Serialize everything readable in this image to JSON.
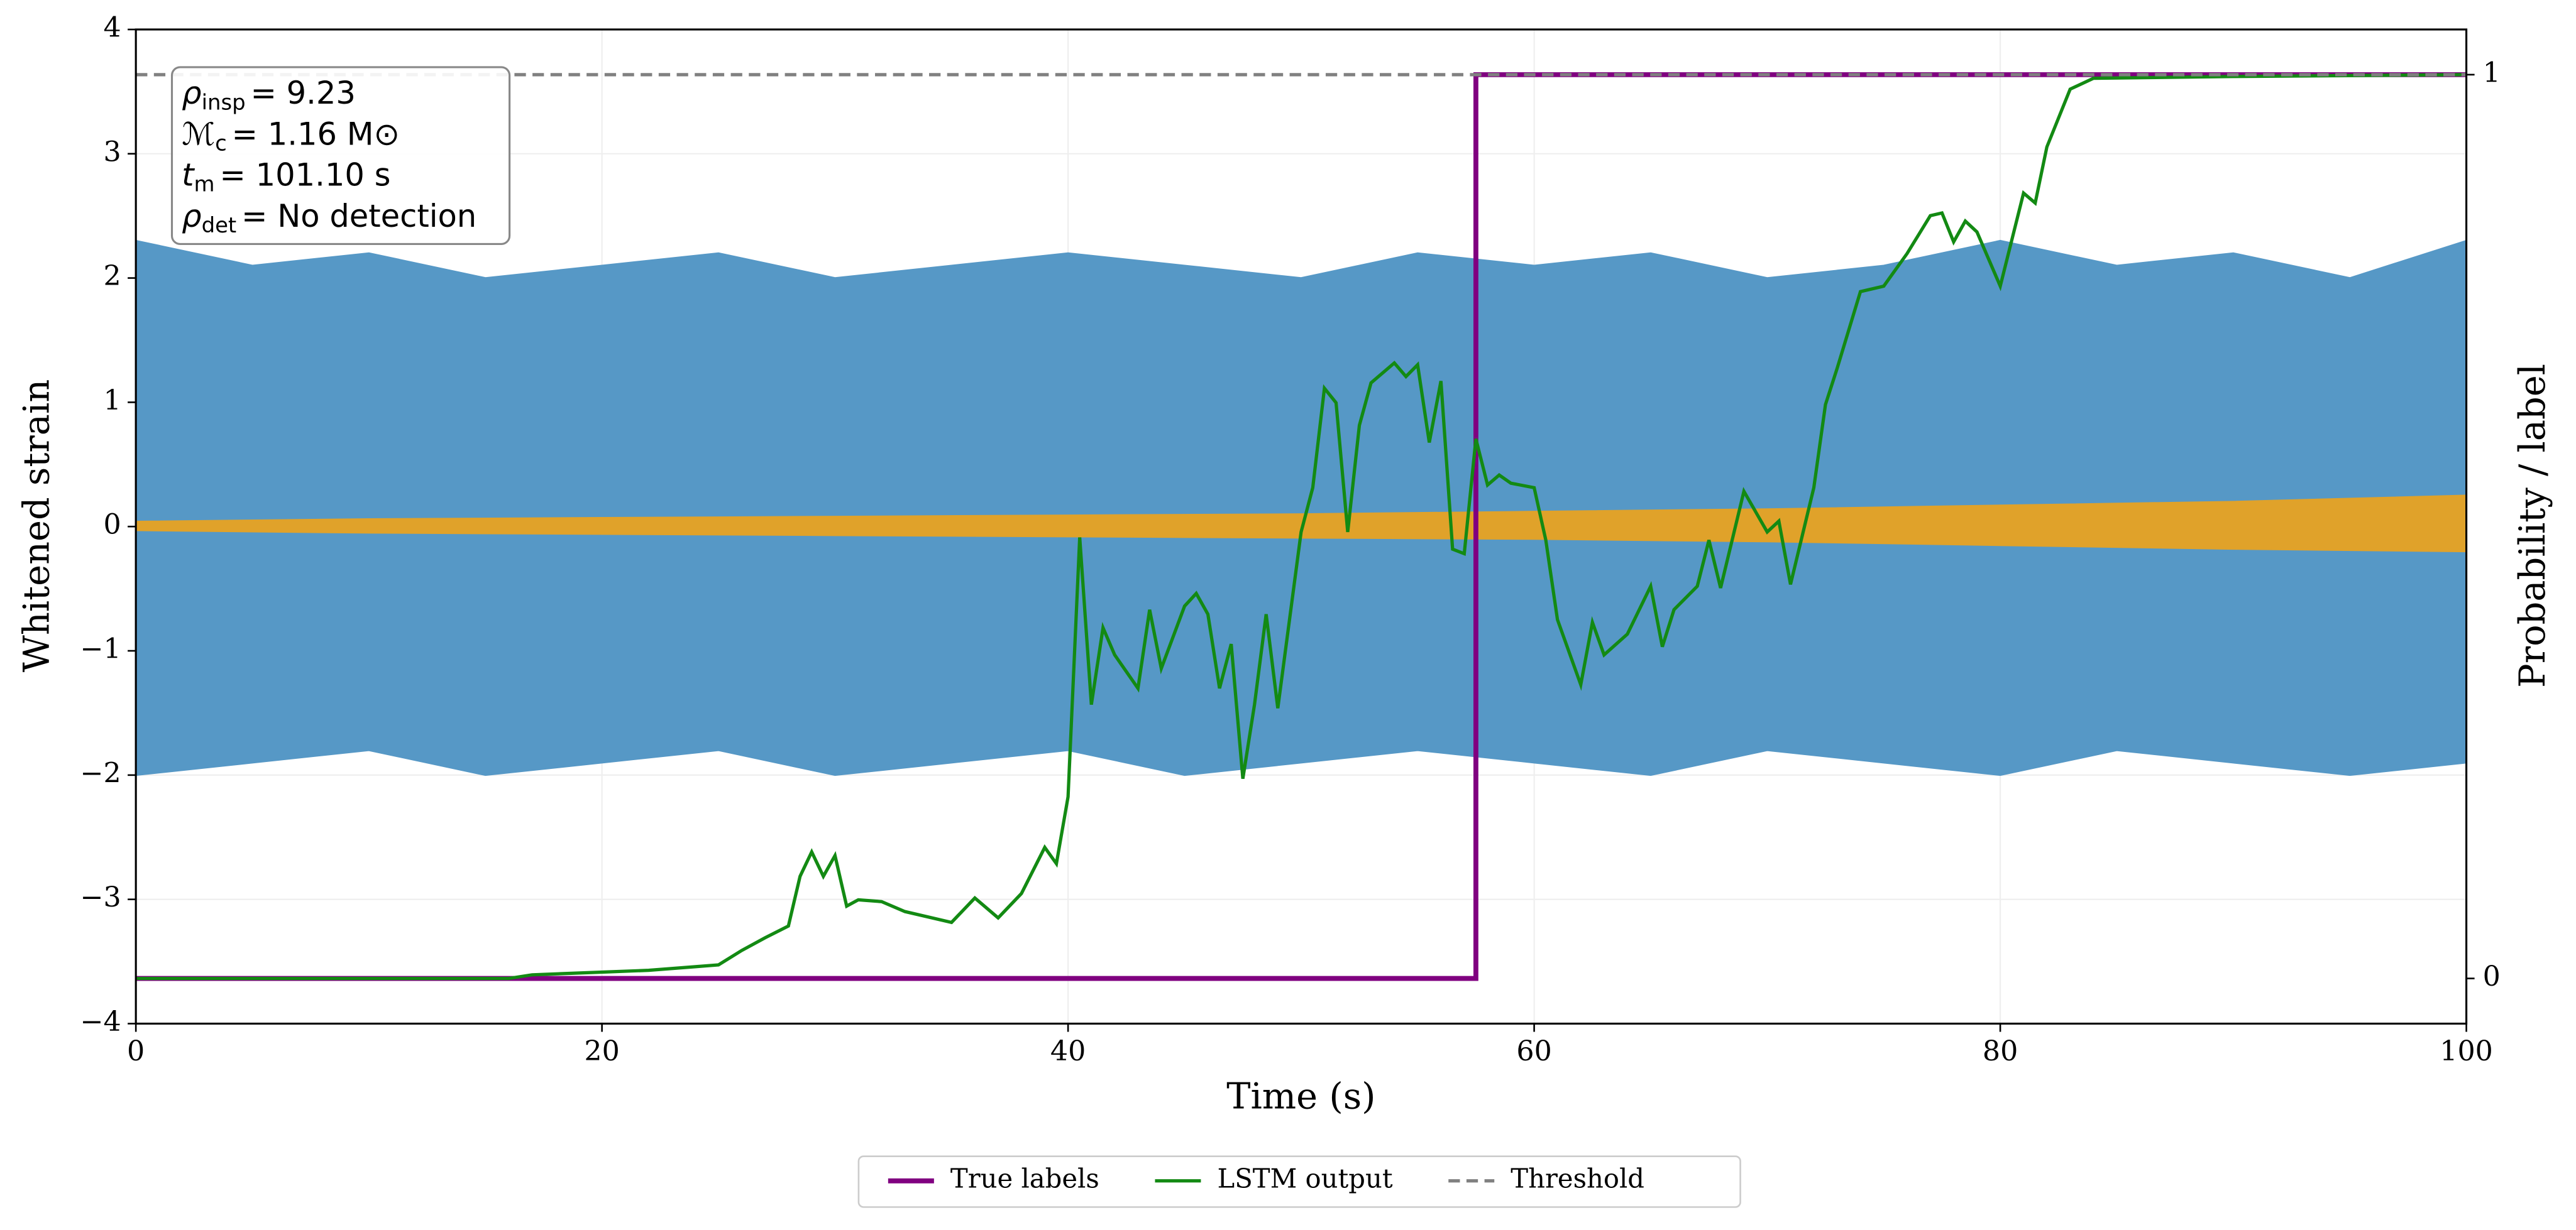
{
  "chart_data": {
    "type": "line",
    "xlabel": "Time (s)",
    "ylabel": "Whitened strain",
    "y2label": "Probability / label",
    "xlim": [
      0,
      100
    ],
    "xticks": [
      0,
      20,
      40,
      60,
      80,
      100
    ],
    "ylim": [
      -4,
      4
    ],
    "yticks": [
      {
        "value": -4,
        "label": "−4"
      },
      {
        "value": -3,
        "label": "−3"
      },
      {
        "value": -2,
        "label": "−2"
      },
      {
        "value": -1,
        "label": "−1"
      },
      0,
      1,
      2,
      3,
      4
    ],
    "y2lim": [
      -0.05,
      1.05
    ],
    "y2ticks": [
      0,
      1
    ],
    "grid": true,
    "legend": "bottom",
    "annotation": [
      {
        "main": "ρ",
        "sub": "insp",
        "text": "= 9.23"
      },
      {
        "main": "ℳ",
        "sub": "c",
        "text": "= 1.16 M⊙"
      },
      {
        "main": "t",
        "sub": "m",
        "text": "= 101.10 s"
      },
      {
        "main": "ρ",
        "sub": "det",
        "text": "= No detection"
      }
    ],
    "series": [
      {
        "axis": "y",
        "style": "band",
        "color": "#5698c6",
        "x": [
          0,
          5,
          10,
          15,
          20,
          25,
          30,
          35,
          40,
          45,
          50,
          55,
          60,
          65,
          70,
          75,
          80,
          85,
          90,
          95,
          100
        ],
        "values": [
          2.3,
          2.1,
          2.2,
          2.0,
          2.1,
          2.2,
          2.0,
          2.1,
          2.2,
          2.1,
          2.0,
          2.2,
          2.1,
          2.2,
          2.0,
          2.1,
          2.3,
          2.1,
          2.2,
          2.0,
          2.3
        ],
        "lower": [
          -2.0,
          -1.9,
          -1.8,
          -2.0,
          -1.9,
          -1.8,
          -2.0,
          -1.9,
          -1.8,
          -2.0,
          -1.9,
          -1.8,
          -1.9,
          -2.0,
          -1.8,
          -1.9,
          -2.0,
          -1.8,
          -1.9,
          -2.0,
          -1.9
        ]
      },
      {
        "axis": "y",
        "style": "band",
        "color": "#e0a22a",
        "x": [
          0,
          10,
          20,
          30,
          40,
          50,
          60,
          70,
          80,
          90,
          100
        ],
        "values": [
          0.04,
          0.06,
          0.07,
          0.08,
          0.09,
          0.1,
          0.12,
          0.14,
          0.17,
          0.2,
          0.25
        ],
        "lower": [
          -0.03,
          -0.05,
          -0.06,
          -0.07,
          -0.08,
          -0.09,
          -0.1,
          -0.12,
          -0.15,
          -0.18,
          -0.2
        ]
      },
      {
        "name": "True labels",
        "axis": "y2",
        "style": "solid",
        "color": "#800080",
        "width": 3,
        "x": [
          0,
          57.5,
          57.5,
          100
        ],
        "values": [
          0,
          0,
          1,
          1
        ]
      },
      {
        "name": "LSTM output",
        "axis": "y2",
        "style": "solid",
        "color": "#138a13",
        "width": 2,
        "x": [
          0,
          16,
          17,
          20,
          22,
          24,
          25,
          26,
          27,
          28,
          28.5,
          29,
          29.5,
          30,
          30.5,
          31,
          32,
          33,
          35,
          36,
          37,
          38,
          39,
          39.5,
          40,
          40.5,
          41,
          41.5,
          42,
          43,
          43.5,
          44,
          45,
          45.5,
          46,
          46.5,
          47,
          47.5,
          48,
          48.5,
          49,
          50,
          50.5,
          51,
          51.5,
          52,
          52.5,
          53,
          54,
          54.5,
          55,
          55.5,
          56,
          56.5,
          57,
          57.5,
          58,
          58.5,
          59,
          60,
          60.5,
          61,
          62,
          62.5,
          63,
          64,
          65,
          65.5,
          66,
          67,
          67.5,
          68,
          69,
          70,
          70.5,
          71,
          72,
          72.5,
          73,
          74,
          75,
          76,
          77,
          77.5,
          78,
          78.5,
          79,
          80,
          81,
          81.5,
          82,
          83,
          84,
          90,
          100
        ],
        "values": [
          0,
          0,
          0.004,
          0.007,
          0.009,
          0.013,
          0.015,
          0.031,
          0.045,
          0.058,
          0.113,
          0.14,
          0.113,
          0.136,
          0.08,
          0.087,
          0.085,
          0.074,
          0.062,
          0.089,
          0.067,
          0.094,
          0.145,
          0.127,
          0.201,
          0.488,
          0.303,
          0.388,
          0.358,
          0.321,
          0.408,
          0.343,
          0.412,
          0.426,
          0.403,
          0.321,
          0.37,
          0.221,
          0.303,
          0.403,
          0.299,
          0.494,
          0.543,
          0.653,
          0.637,
          0.494,
          0.612,
          0.659,
          0.681,
          0.666,
          0.679,
          0.593,
          0.661,
          0.475,
          0.47,
          0.597,
          0.546,
          0.557,
          0.548,
          0.543,
          0.485,
          0.397,
          0.325,
          0.394,
          0.358,
          0.381,
          0.434,
          0.367,
          0.408,
          0.434,
          0.485,
          0.432,
          0.539,
          0.494,
          0.506,
          0.436,
          0.543,
          0.635,
          0.675,
          0.76,
          0.766,
          0.802,
          0.844,
          0.847,
          0.815,
          0.838,
          0.826,
          0.766,
          0.869,
          0.858,
          0.92,
          0.984,
          0.996,
          0.998,
          1
        ]
      },
      {
        "name": "Threshold",
        "axis": "y2",
        "style": "dashed",
        "color": "#808080",
        "width": 2,
        "x": [
          0,
          100
        ],
        "values": [
          1,
          1
        ]
      }
    ]
  }
}
